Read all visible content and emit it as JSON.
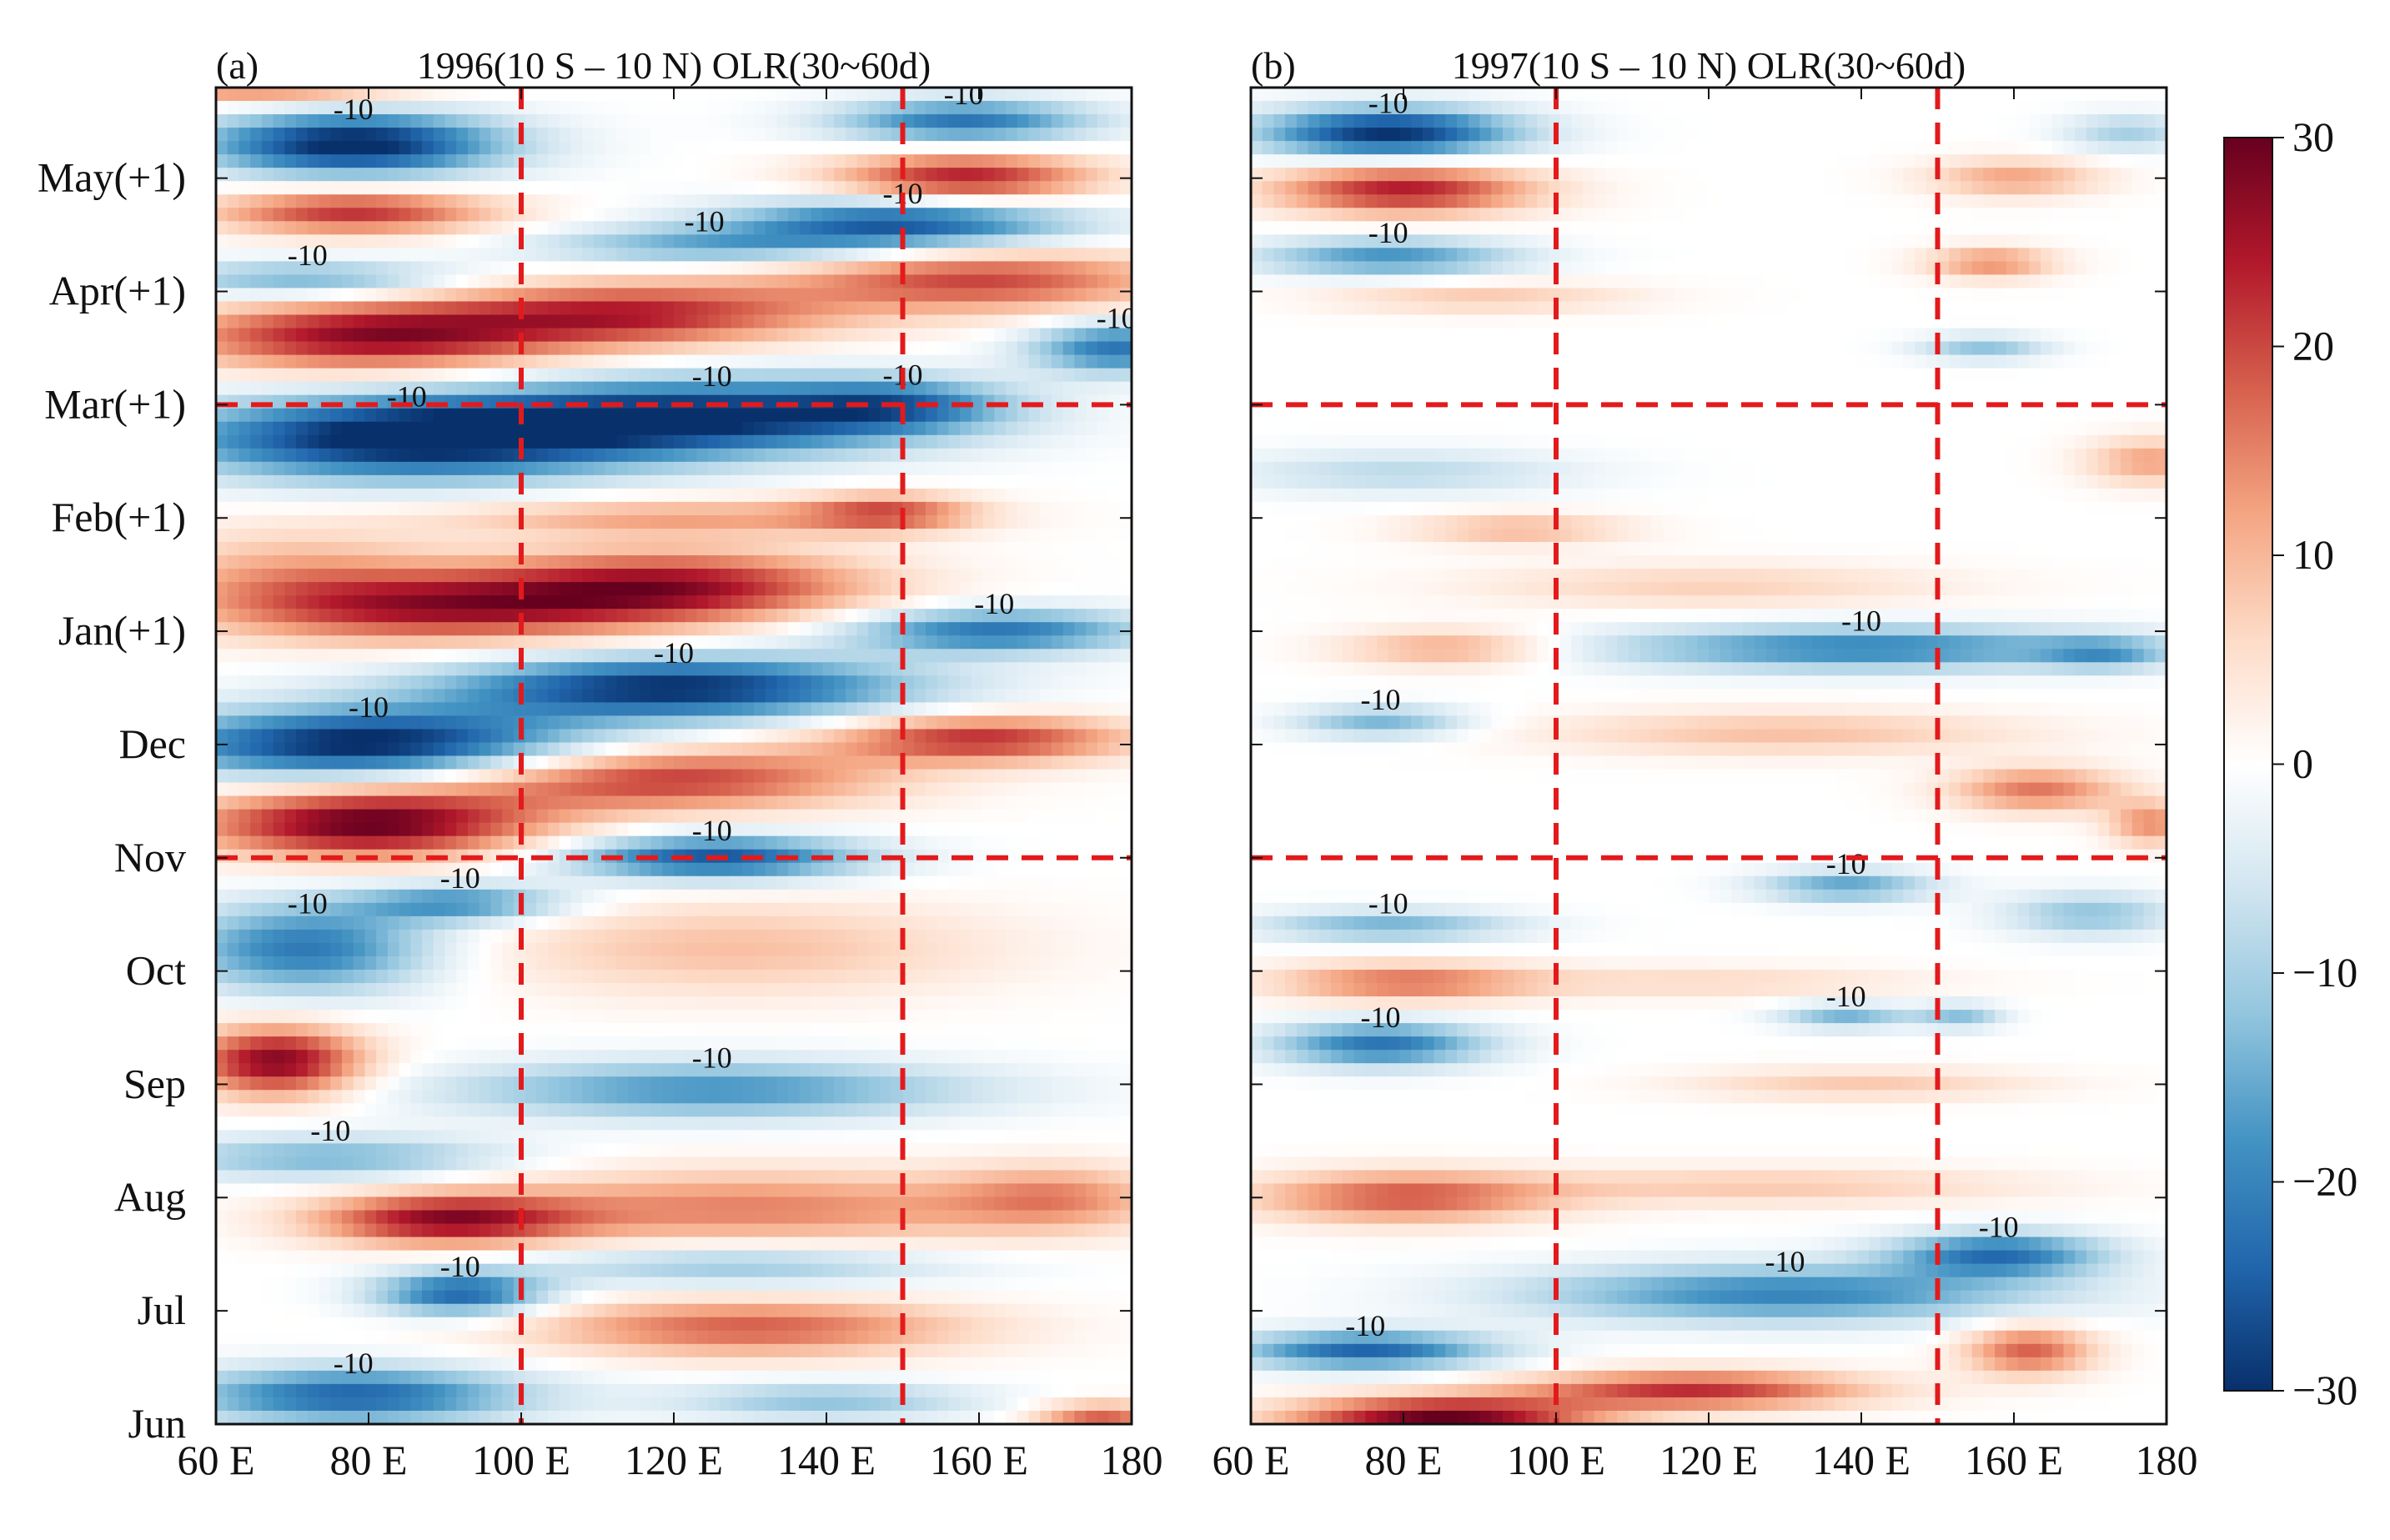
{
  "chart_data": [
    {
      "type": "heatmap",
      "panel_label": "(a)",
      "title": "1996(10 S – 10 N) OLR(30~60d)",
      "x_ticks": [
        "60 E",
        "80 E",
        "100 E",
        "120 E",
        "140 E",
        "160 E",
        "180"
      ],
      "y_ticks": [
        "Jun",
        "Jul",
        "Aug",
        "Sep",
        "Oct",
        "Nov",
        "Dec",
        "Jan(+1)",
        "Feb(+1)",
        "Mar(+1)",
        "Apr(+1)",
        "May(+1)"
      ],
      "xlim": [
        60,
        180
      ],
      "ylim_months": [
        0,
        11.8
      ],
      "reference_lines": {
        "longitudes": [
          100,
          150
        ],
        "months": [
          "Nov",
          "Mar(+1)"
        ]
      },
      "contour_label": "-10",
      "anomalies": [
        {
          "lon": 66,
          "m": 11.9,
          "sx": 14,
          "sy": 0.14,
          "v": 26
        },
        {
          "lon": 78,
          "m": 11.3,
          "sx": 14,
          "sy": 0.2,
          "v": -32
        },
        {
          "lon": 78,
          "m": 10.7,
          "sx": 13,
          "sy": 0.14,
          "v": 22
        },
        {
          "lon": 72,
          "m": 10.1,
          "sx": 14,
          "sy": 0.12,
          "v": -15
        },
        {
          "lon": 158,
          "m": 11.5,
          "sx": 12,
          "sy": 0.14,
          "v": -22
        },
        {
          "lon": 158,
          "m": 11.0,
          "sx": 12,
          "sy": 0.16,
          "v": 24
        },
        {
          "lon": 150,
          "m": 10.6,
          "sx": 16,
          "sy": 0.16,
          "v": -26
        },
        {
          "lon": 124,
          "m": 10.4,
          "sx": 16,
          "sy": 0.12,
          "v": -14
        },
        {
          "lon": 80,
          "m": 9.6,
          "sx": 18,
          "sy": 0.22,
          "v": 26
        },
        {
          "lon": 115,
          "m": 9.8,
          "sx": 18,
          "sy": 0.2,
          "v": 22
        },
        {
          "lon": 160,
          "m": 10.1,
          "sx": 18,
          "sy": 0.2,
          "v": 20
        },
        {
          "lon": 178,
          "m": 9.5,
          "sx": 8,
          "sy": 0.16,
          "v": -22
        },
        {
          "lon": 85,
          "m": 8.7,
          "sx": 22,
          "sy": 0.26,
          "v": -32
        },
        {
          "lon": 125,
          "m": 8.9,
          "sx": 22,
          "sy": 0.24,
          "v": -28
        },
        {
          "lon": 150,
          "m": 9.0,
          "sx": 10,
          "sy": 0.16,
          "v": -14
        },
        {
          "lon": 148,
          "m": 8.05,
          "sx": 8,
          "sy": 0.12,
          "v": 16
        },
        {
          "lon": 120,
          "m": 8.0,
          "sx": 22,
          "sy": 0.12,
          "v": 12
        },
        {
          "lon": 70,
          "m": 7.5,
          "sx": 14,
          "sy": 0.3,
          "v": 10
        },
        {
          "lon": 90,
          "m": 7.2,
          "sx": 20,
          "sy": 0.22,
          "v": 22
        },
        {
          "lon": 120,
          "m": 7.4,
          "sx": 18,
          "sy": 0.22,
          "v": 24
        },
        {
          "lon": 162,
          "m": 7.0,
          "sx": 14,
          "sy": 0.14,
          "v": -22
        },
        {
          "lon": 80,
          "m": 6.0,
          "sx": 20,
          "sy": 0.22,
          "v": -32
        },
        {
          "lon": 120,
          "m": 6.5,
          "sx": 22,
          "sy": 0.2,
          "v": -30
        },
        {
          "lon": 160,
          "m": 6.05,
          "sx": 14,
          "sy": 0.15,
          "v": 22
        },
        {
          "lon": 80,
          "m": 5.3,
          "sx": 16,
          "sy": 0.22,
          "v": 30
        },
        {
          "lon": 118,
          "m": 5.7,
          "sx": 20,
          "sy": 0.2,
          "v": 22
        },
        {
          "lon": 125,
          "m": 5.0,
          "sx": 14,
          "sy": 0.14,
          "v": -26
        },
        {
          "lon": 72,
          "m": 4.2,
          "sx": 12,
          "sy": 0.28,
          "v": -22
        },
        {
          "lon": 92,
          "m": 4.6,
          "sx": 10,
          "sy": 0.12,
          "v": -18
        },
        {
          "lon": 128,
          "m": 4.2,
          "sx": 24,
          "sy": 0.3,
          "v": 9
        },
        {
          "lon": 68,
          "m": 3.2,
          "sx": 8,
          "sy": 0.22,
          "v": 28
        },
        {
          "lon": 125,
          "m": 2.95,
          "sx": 24,
          "sy": 0.18,
          "v": -18
        },
        {
          "lon": 75,
          "m": 2.35,
          "sx": 16,
          "sy": 0.14,
          "v": -14
        },
        {
          "lon": 90,
          "m": 1.8,
          "sx": 12,
          "sy": 0.16,
          "v": 24
        },
        {
          "lon": 130,
          "m": 1.9,
          "sx": 26,
          "sy": 0.24,
          "v": 15
        },
        {
          "lon": 170,
          "m": 2.0,
          "sx": 10,
          "sy": 0.2,
          "v": 12
        },
        {
          "lon": 92,
          "m": 1.15,
          "sx": 8,
          "sy": 0.14,
          "v": -24
        },
        {
          "lon": 128,
          "m": 1.4,
          "sx": 20,
          "sy": 0.14,
          "v": -12
        },
        {
          "lon": 130,
          "m": 0.85,
          "sx": 20,
          "sy": 0.18,
          "v": 18
        },
        {
          "lon": 78,
          "m": 0.25,
          "sx": 16,
          "sy": 0.18,
          "v": -24
        },
        {
          "lon": 140,
          "m": 0.2,
          "sx": 14,
          "sy": 0.12,
          "v": -12
        },
        {
          "lon": 176,
          "m": 0.05,
          "sx": 6,
          "sy": 0.1,
          "v": 18
        }
      ]
    },
    {
      "type": "heatmap",
      "panel_label": "(b)",
      "title": "1997(10 S – 10 N) OLR(30~60d)",
      "x_ticks": [
        "60 E",
        "80 E",
        "100 E",
        "120 E",
        "140 E",
        "160 E",
        "180"
      ],
      "y_ticks": [
        "Jun",
        "Jul",
        "Aug",
        "Sep",
        "Oct",
        "Nov",
        "Dec",
        "Jan(+1)",
        "Feb(+1)",
        "Mar(+1)",
        "Apr(+1)",
        "May(+1)"
      ],
      "xlim": [
        60,
        180
      ],
      "ylim_months": [
        0,
        11.8
      ],
      "reference_lines": {
        "longitudes": [
          100,
          150
        ],
        "months": [
          "Nov",
          "Mar(+1)"
        ]
      },
      "contour_label": "-10",
      "anomalies": [
        {
          "lon": 78,
          "m": 11.4,
          "sx": 12,
          "sy": 0.16,
          "v": -30
        },
        {
          "lon": 80,
          "m": 10.9,
          "sx": 12,
          "sy": 0.16,
          "v": 24
        },
        {
          "lon": 78,
          "m": 10.3,
          "sx": 12,
          "sy": 0.12,
          "v": -18
        },
        {
          "lon": 160,
          "m": 11.0,
          "sx": 8,
          "sy": 0.12,
          "v": 12
        },
        {
          "lon": 157,
          "m": 10.25,
          "sx": 6,
          "sy": 0.1,
          "v": 14
        },
        {
          "lon": 175,
          "m": 11.4,
          "sx": 6,
          "sy": 0.12,
          "v": -10
        },
        {
          "lon": 90,
          "m": 9.95,
          "sx": 14,
          "sy": 0.1,
          "v": 8
        },
        {
          "lon": 156,
          "m": 9.5,
          "sx": 6,
          "sy": 0.08,
          "v": -12
        },
        {
          "lon": 178,
          "m": 8.5,
          "sx": 6,
          "sy": 0.15,
          "v": 12
        },
        {
          "lon": 80,
          "m": 8.4,
          "sx": 16,
          "sy": 0.14,
          "v": -8
        },
        {
          "lon": 95,
          "m": 7.9,
          "sx": 10,
          "sy": 0.1,
          "v": 10
        },
        {
          "lon": 120,
          "m": 7.4,
          "sx": 22,
          "sy": 0.14,
          "v": 7
        },
        {
          "lon": 86,
          "m": 6.85,
          "sx": 10,
          "sy": 0.12,
          "v": 12
        },
        {
          "lon": 140,
          "m": 6.85,
          "sx": 24,
          "sy": 0.14,
          "v": -20
        },
        {
          "lon": 172,
          "m": 6.8,
          "sx": 6,
          "sy": 0.1,
          "v": -12
        },
        {
          "lon": 77,
          "m": 6.2,
          "sx": 8,
          "sy": 0.1,
          "v": -14
        },
        {
          "lon": 130,
          "m": 6.1,
          "sx": 22,
          "sy": 0.14,
          "v": 9
        },
        {
          "lon": 163,
          "m": 5.6,
          "sx": 8,
          "sy": 0.14,
          "v": 16
        },
        {
          "lon": 178,
          "m": 5.3,
          "sx": 4,
          "sy": 0.14,
          "v": 14
        },
        {
          "lon": 78,
          "m": 4.4,
          "sx": 12,
          "sy": 0.1,
          "v": -14
        },
        {
          "lon": 138,
          "m": 4.75,
          "sx": 8,
          "sy": 0.1,
          "v": -16
        },
        {
          "lon": 170,
          "m": 4.5,
          "sx": 8,
          "sy": 0.14,
          "v": -12
        },
        {
          "lon": 80,
          "m": 3.9,
          "sx": 12,
          "sy": 0.12,
          "v": 16
        },
        {
          "lon": 120,
          "m": 3.9,
          "sx": 20,
          "sy": 0.1,
          "v": 6
        },
        {
          "lon": 77,
          "m": 3.35,
          "sx": 10,
          "sy": 0.14,
          "v": -22
        },
        {
          "lon": 138,
          "m": 3.6,
          "sx": 6,
          "sy": 0.08,
          "v": -14
        },
        {
          "lon": 153,
          "m": 3.6,
          "sx": 4,
          "sy": 0.08,
          "v": -12
        },
        {
          "lon": 140,
          "m": 3.0,
          "sx": 16,
          "sy": 0.1,
          "v": 8
        },
        {
          "lon": 80,
          "m": 2.0,
          "sx": 14,
          "sy": 0.16,
          "v": 18
        },
        {
          "lon": 128,
          "m": 2.1,
          "sx": 24,
          "sy": 0.12,
          "v": 8
        },
        {
          "lon": 130,
          "m": 1.15,
          "sx": 24,
          "sy": 0.18,
          "v": -20
        },
        {
          "lon": 158,
          "m": 1.5,
          "sx": 10,
          "sy": 0.14,
          "v": -22
        },
        {
          "lon": 75,
          "m": 0.65,
          "sx": 12,
          "sy": 0.12,
          "v": -24
        },
        {
          "lon": 162,
          "m": 0.65,
          "sx": 6,
          "sy": 0.16,
          "v": 18
        },
        {
          "lon": 85,
          "m": 0.05,
          "sx": 14,
          "sy": 0.13,
          "v": 30
        },
        {
          "lon": 118,
          "m": 0.3,
          "sx": 16,
          "sy": 0.12,
          "v": 22
        }
      ]
    }
  ],
  "colorbar": {
    "ticks": [
      "30",
      "20",
      "10",
      "0",
      "−10",
      "−20",
      "−30"
    ],
    "range": [
      -30,
      30
    ],
    "colormap": [
      "#08306b",
      "#2166ac",
      "#4393c3",
      "#92c5de",
      "#d1e5f0",
      "#ffffff",
      "#fddbc7",
      "#f4a582",
      "#d6604d",
      "#b2182b",
      "#67001f"
    ],
    "ref_line_color": "#e31a1c"
  }
}
